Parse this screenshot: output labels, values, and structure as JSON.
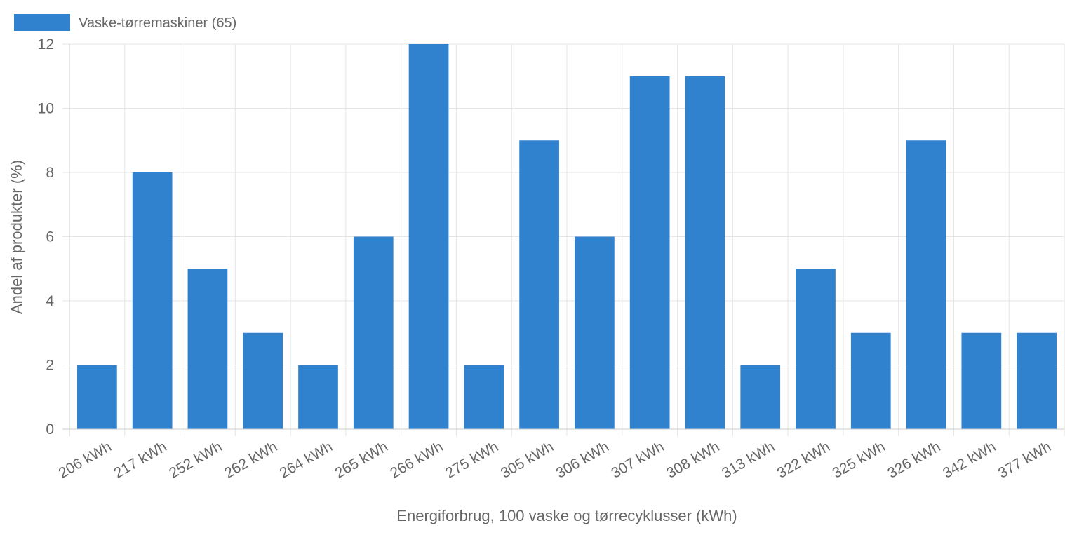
{
  "chart_data": {
    "type": "bar",
    "categories": [
      "206 kWh",
      "217 kWh",
      "252 kWh",
      "262 kWh",
      "264 kWh",
      "265 kWh",
      "266 kWh",
      "275 kWh",
      "305 kWh",
      "306 kWh",
      "307 kWh",
      "308 kWh",
      "313 kWh",
      "322 kWh",
      "325 kWh",
      "326 kWh",
      "342 kWh",
      "377 kWh"
    ],
    "series": [
      {
        "name": "Vaske-tørremaskiner (65)",
        "values": [
          2,
          8,
          5,
          3,
          2,
          6,
          12,
          2,
          9,
          6,
          11,
          11,
          2,
          5,
          3,
          9,
          3,
          3
        ],
        "color": "#3182ce"
      }
    ],
    "xlabel": "Energiforbrug, 100 vaske og tørrecyklusser (kWh)",
    "ylabel": "Andel af produkter (%)",
    "ylim": [
      0,
      12
    ],
    "yticks": [
      "0",
      "2",
      "4",
      "6",
      "8",
      "10",
      "12"
    ],
    "grid": true,
    "legend_position": "top-left",
    "colors": {
      "grid": "#e5e5e5",
      "axis": "#cccccc",
      "text": "#666666"
    }
  }
}
